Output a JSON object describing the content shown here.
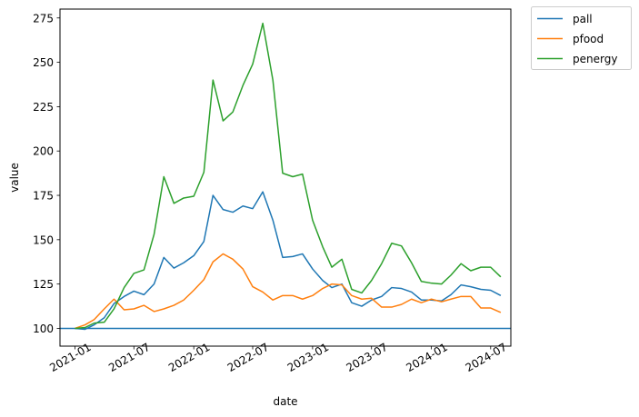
{
  "chart_data": {
    "type": "line",
    "xlabel": "date",
    "ylabel": "value",
    "x_tick_labels": [
      "2021-01",
      "2021-07",
      "2022-01",
      "2022-07",
      "2023-01",
      "2023-07",
      "2024-01",
      "2024-07"
    ],
    "y_ticks": [
      100,
      125,
      150,
      175,
      200,
      225,
      250,
      275
    ],
    "ylim": [
      90,
      280
    ],
    "xlim": [
      "2020-11-16",
      "2024-09-01"
    ],
    "legend_position": "outside-top-right",
    "reference_line": {
      "y": 100,
      "color": "#1f77b4"
    },
    "x": [
      "2021-01",
      "2021-02",
      "2021-03",
      "2021-04",
      "2021-05",
      "2021-06",
      "2021-07",
      "2021-08",
      "2021-09",
      "2021-10",
      "2021-11",
      "2021-12",
      "2022-01",
      "2022-02",
      "2022-03",
      "2022-04",
      "2022-05",
      "2022-06",
      "2022-07",
      "2022-08",
      "2022-09",
      "2022-10",
      "2022-11",
      "2022-12",
      "2023-01",
      "2023-02",
      "2023-03",
      "2023-04",
      "2023-05",
      "2023-06",
      "2023-07",
      "2023-08",
      "2023-09",
      "2023-10",
      "2023-11",
      "2023-12",
      "2024-01",
      "2024-02",
      "2024-03",
      "2024-04",
      "2024-05",
      "2024-06",
      "2024-07",
      "2024-08"
    ],
    "series": [
      {
        "name": "pall",
        "color": "#1f77b4",
        "values": [
          100,
          99.5,
          102,
          106,
          114,
          118,
          121,
          119,
          125,
          140,
          134,
          137,
          141,
          149,
          175,
          167,
          165.5,
          169,
          167.5,
          177,
          161,
          140,
          140.5,
          142,
          133.5,
          127,
          123,
          125,
          114.5,
          112.5,
          116,
          118,
          123,
          122.5,
          120.5,
          116,
          116,
          115.5,
          119,
          124.5,
          123.5,
          122,
          121.5,
          118.5
        ]
      },
      {
        "name": "pfood",
        "color": "#ff7f0e",
        "values": [
          100,
          102,
          105,
          111,
          116.5,
          110.5,
          111,
          113,
          109.5,
          111,
          113,
          116,
          121.5,
          127.5,
          137.5,
          142,
          139,
          133.5,
          123.5,
          120.5,
          116,
          118.5,
          118.5,
          116.5,
          118.5,
          122.5,
          125,
          124.5,
          118.5,
          116.5,
          117,
          112,
          112,
          113.5,
          116.5,
          114.5,
          116.5,
          115,
          116.5,
          118,
          118,
          111.5,
          111.5,
          109
        ]
      },
      {
        "name": "penergy",
        "color": "#2ca02c",
        "values": [
          100,
          100.5,
          103,
          103.5,
          111,
          123,
          131,
          133,
          153,
          185.5,
          170.5,
          173.5,
          174.5,
          188,
          240,
          217,
          222,
          237,
          249,
          272,
          240,
          187.5,
          185.5,
          187,
          161,
          146,
          134.5,
          139,
          122,
          120,
          127,
          136.5,
          148,
          146.5,
          137,
          126.5,
          125.5,
          125,
          130,
          136.5,
          132.5,
          134.5,
          134.5,
          129
        ]
      }
    ]
  }
}
